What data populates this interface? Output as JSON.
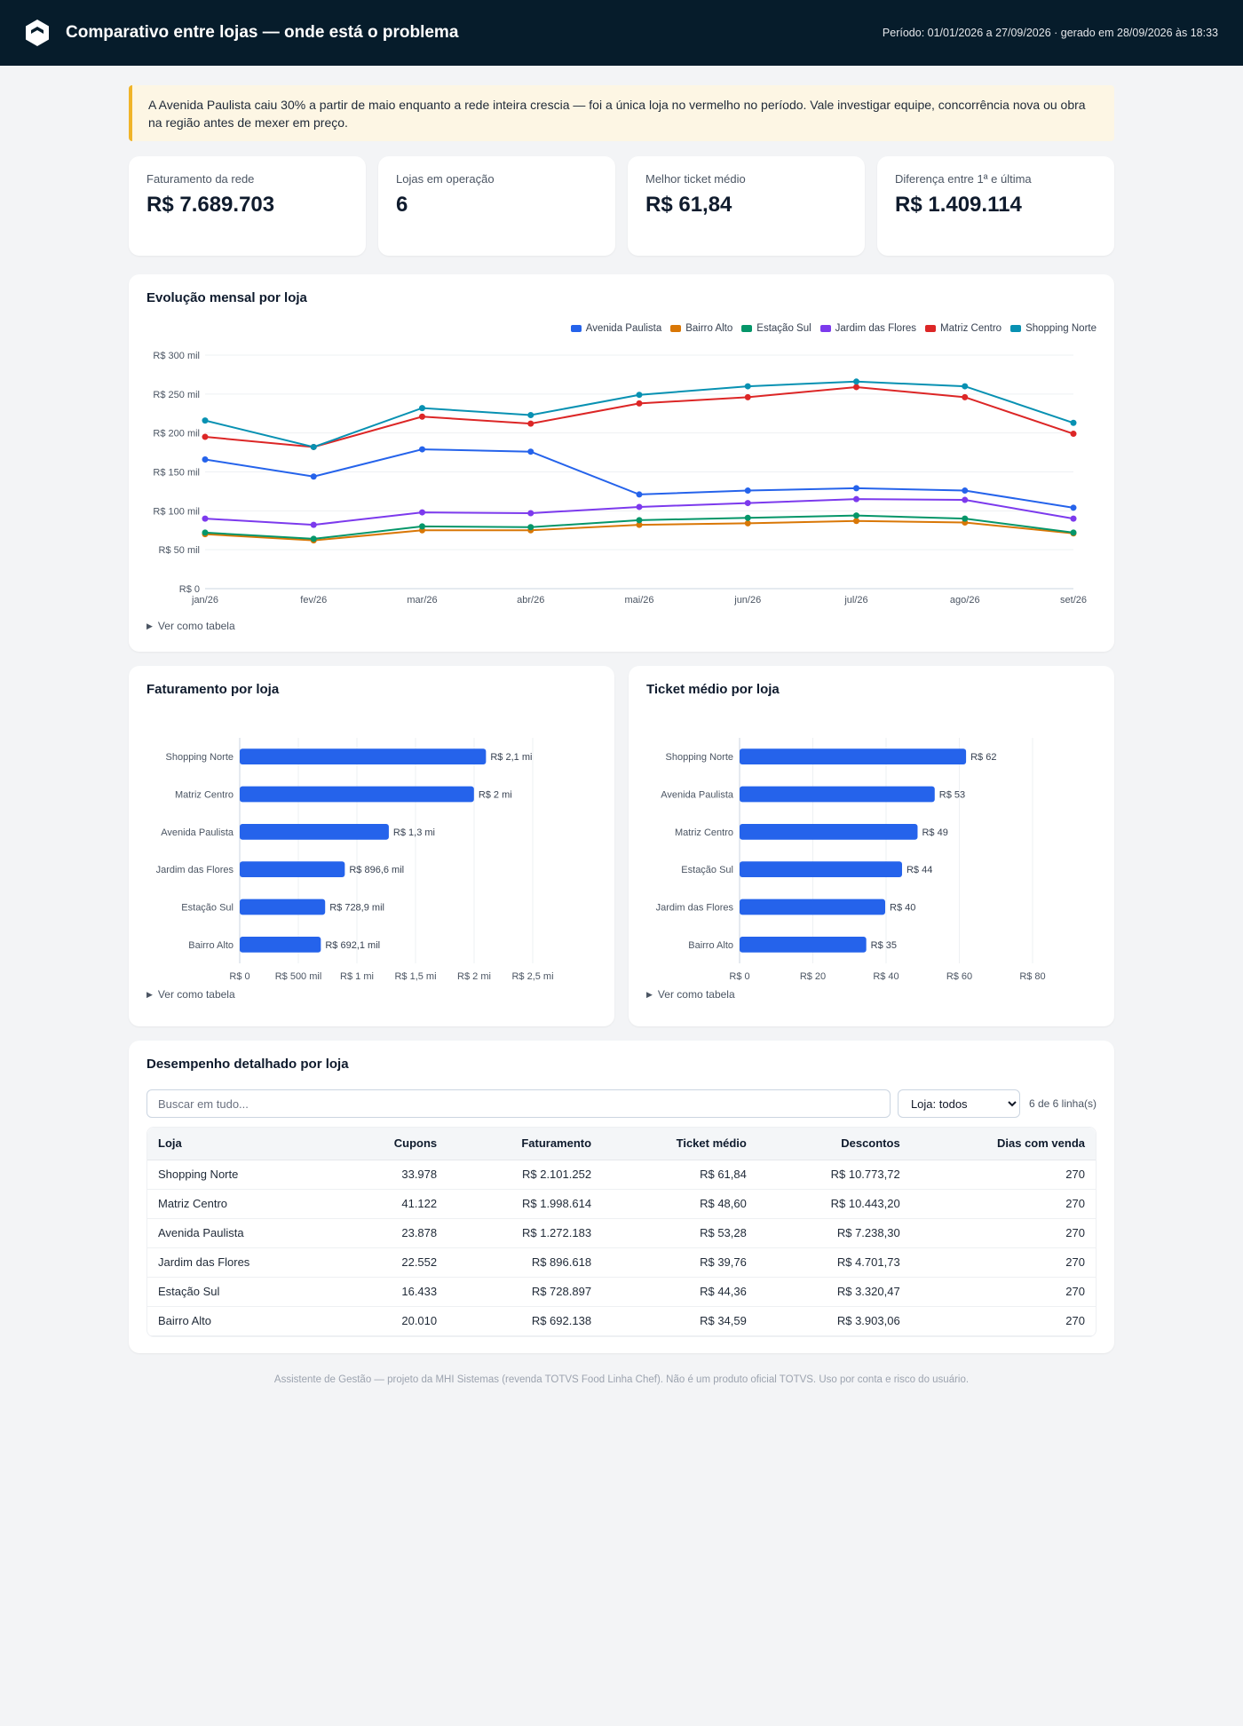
{
  "header": {
    "title": "Comparativo entre lojas — onde está o problema",
    "period": "Período: 01/01/2026 a 27/09/2026 · gerado em 28/09/2026 às 18:33"
  },
  "alert": "A Avenida Paulista caiu 30% a partir de maio enquanto a rede inteira crescia — foi a única loja no vermelho no período. Vale investigar equipe, concorrência nova ou obra na região antes de mexer em preço.",
  "kpis": [
    {
      "label": "Faturamento da rede",
      "value": "R$ 7.689.703"
    },
    {
      "label": "Lojas em operação",
      "value": "6"
    },
    {
      "label": "Melhor ticket médio",
      "value": "R$ 61,84"
    },
    {
      "label": "Diferença entre 1ª e última",
      "value": "R$ 1.409.114"
    }
  ],
  "line_section": {
    "title": "Evolução mensal por loja",
    "toggle": "Ver como tabela"
  },
  "revenue_section": {
    "title": "Faturamento por loja",
    "toggle": "Ver como tabela"
  },
  "ticket_section": {
    "title": "Ticket médio por loja",
    "toggle": "Ver como tabela"
  },
  "table_section": {
    "title": "Desempenho detalhado por loja",
    "search_placeholder": "Buscar em tudo...",
    "select_value": "Loja: todos",
    "count": "6 de 6 linha(s)",
    "columns": [
      "Loja",
      "Cupons",
      "Faturamento",
      "Ticket médio",
      "Descontos",
      "Dias com venda"
    ],
    "rows": [
      [
        "Shopping Norte",
        "33.978",
        "R$ 2.101.252",
        "R$ 61,84",
        "R$ 10.773,72",
        "270"
      ],
      [
        "Matriz Centro",
        "41.122",
        "R$ 1.998.614",
        "R$ 48,60",
        "R$ 10.443,20",
        "270"
      ],
      [
        "Avenida Paulista",
        "23.878",
        "R$ 1.272.183",
        "R$ 53,28",
        "R$ 7.238,30",
        "270"
      ],
      [
        "Jardim das Flores",
        "22.552",
        "R$ 896.618",
        "R$ 39,76",
        "R$ 4.701,73",
        "270"
      ],
      [
        "Estação Sul",
        "16.433",
        "R$ 728.897",
        "R$ 44,36",
        "R$ 3.320,47",
        "270"
      ],
      [
        "Bairro Alto",
        "20.010",
        "R$ 692.138",
        "R$ 34,59",
        "R$ 3.903,06",
        "270"
      ]
    ]
  },
  "footer": "Assistente de Gestão — projeto da MHI Sistemas (revenda TOTVS Food Linha Chef). Não é um produto oficial TOTVS. Uso por conta e risco do usuário.",
  "chart_data": [
    {
      "type": "line",
      "title": "Evolução mensal por loja",
      "x": [
        "jan/26",
        "fev/26",
        "mar/26",
        "abr/26",
        "mai/26",
        "jun/26",
        "jul/26",
        "ago/26",
        "set/26"
      ],
      "ylim": [
        0,
        300000
      ],
      "yticks": [
        0,
        50000,
        100000,
        150000,
        200000,
        250000,
        300000
      ],
      "ytick_labels": [
        "R$ 0",
        "R$ 50 mil",
        "R$ 100 mil",
        "R$ 150 mil",
        "R$ 200 mil",
        "R$ 250 mil",
        "R$ 300 mil"
      ],
      "grid": true,
      "legend_position": "top-right",
      "series": [
        {
          "name": "Avenida Paulista",
          "color": "#2563eb",
          "values": [
            166000,
            144000,
            179000,
            176000,
            121000,
            126000,
            129000,
            126000,
            104000
          ]
        },
        {
          "name": "Bairro Alto",
          "color": "#d97706",
          "values": [
            70000,
            62000,
            75000,
            75000,
            82000,
            84000,
            87000,
            85000,
            71000
          ]
        },
        {
          "name": "Estação Sul",
          "color": "#059669",
          "values": [
            72000,
            64000,
            80000,
            79000,
            88000,
            91000,
            94000,
            90000,
            72000
          ]
        },
        {
          "name": "Jardim das Flores",
          "color": "#7c3aed",
          "values": [
            90000,
            82000,
            98000,
            97000,
            105000,
            110000,
            115000,
            114000,
            90000
          ]
        },
        {
          "name": "Matriz Centro",
          "color": "#dc2626",
          "values": [
            195000,
            182000,
            221000,
            212000,
            238000,
            246000,
            259000,
            246000,
            199000
          ]
        },
        {
          "name": "Shopping Norte",
          "color": "#0891b2",
          "values": [
            216000,
            182000,
            232000,
            223000,
            249000,
            260000,
            266000,
            260000,
            213000
          ]
        }
      ]
    },
    {
      "type": "bar",
      "title": "Faturamento por loja",
      "orientation": "horizontal",
      "color": "#2563eb",
      "categories": [
        "Shopping Norte",
        "Matriz Centro",
        "Avenida Paulista",
        "Jardim das Flores",
        "Estação Sul",
        "Bairro Alto"
      ],
      "values": [
        2101252,
        1998614,
        1272183,
        896618,
        728897,
        692138
      ],
      "data_labels": [
        "R$ 2,1 mi",
        "R$ 2 mi",
        "R$ 1,3 mi",
        "R$ 896,6 mil",
        "R$ 728,9 mil",
        "R$ 692,1 mil"
      ],
      "xlim": [
        0,
        2500000
      ],
      "xticks": [
        0,
        500000,
        1000000,
        1500000,
        2000000,
        2500000
      ],
      "xtick_labels": [
        "R$ 0",
        "R$ 500 mil",
        "R$ 1 mi",
        "R$ 1,5 mi",
        "R$ 2 mi",
        "R$ 2,5 mi"
      ],
      "grid": true
    },
    {
      "type": "bar",
      "title": "Ticket médio por loja",
      "orientation": "horizontal",
      "color": "#2563eb",
      "categories": [
        "Shopping Norte",
        "Avenida Paulista",
        "Matriz Centro",
        "Estação Sul",
        "Jardim das Flores",
        "Bairro Alto"
      ],
      "values": [
        61.84,
        53.28,
        48.6,
        44.36,
        39.76,
        34.59
      ],
      "data_labels": [
        "R$ 62",
        "R$ 53",
        "R$ 49",
        "R$ 44",
        "R$ 40",
        "R$ 35"
      ],
      "xlim": [
        0,
        80
      ],
      "xticks": [
        0,
        20,
        40,
        60,
        80
      ],
      "xtick_labels": [
        "R$ 0",
        "R$ 20",
        "R$ 40",
        "R$ 60",
        "R$ 80"
      ],
      "grid": true
    }
  ]
}
